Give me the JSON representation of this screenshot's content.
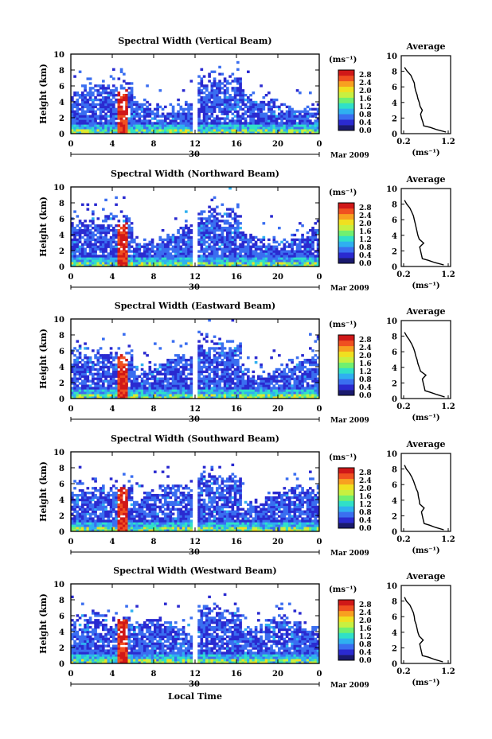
{
  "figure": {
    "x_axis_label": "Local Time",
    "date_left": "30",
    "date_right": "Mar 2009",
    "colorbar_unit": "(ms⁻¹)",
    "profile_title": "Average",
    "profile_xlabel": "(ms⁻¹)"
  },
  "colorbar": {
    "tick_labels": [
      "0.0",
      "0.4",
      "0.8",
      "1.2",
      "1.6",
      "2.0",
      "2.4",
      "2.8"
    ],
    "colors": [
      "#1a1a6e",
      "#2a2ad0",
      "#3a6ef0",
      "#2fb0f0",
      "#30e0c8",
      "#70f070",
      "#c8f040",
      "#f0e020",
      "#f8a020",
      "#f05020",
      "#d01818"
    ]
  },
  "chart_data": [
    {
      "type": "heatmap",
      "title": "Spectral Width (Vertical Beam)",
      "xlabel": "Local Time",
      "ylabel": "Height (km)",
      "xlim": [
        0,
        24
      ],
      "ylim": [
        0,
        10
      ],
      "x_ticks": [
        "0",
        "4",
        "8",
        "12",
        "16",
        "20",
        "0"
      ],
      "y_ticks": [
        "0",
        "2",
        "4",
        "6",
        "8",
        "10"
      ],
      "colorbar_range": [
        0,
        2.8
      ],
      "profile": {
        "title": "Average",
        "xlabel": "(ms⁻¹)",
        "xlim": [
          0.2,
          1.2
        ],
        "x_ticks": [
          "0.2",
          "1.2"
        ],
        "y_ticks": [
          "0",
          "2",
          "4",
          "6",
          "8",
          "10"
        ],
        "heights": [
          0.2,
          0.5,
          0.8,
          1.0,
          1.5,
          2.0,
          2.5,
          3.0,
          3.5,
          4.0,
          4.5,
          5.0,
          5.5,
          6.0,
          6.5,
          7.0,
          7.5,
          8.0,
          8.5
        ],
        "values": [
          1.15,
          0.95,
          0.8,
          0.65,
          0.63,
          0.6,
          0.58,
          0.62,
          0.57,
          0.55,
          0.52,
          0.5,
          0.47,
          0.45,
          0.44,
          0.4,
          0.36,
          0.28,
          0.22
        ]
      }
    },
    {
      "type": "heatmap",
      "title": "Spectral Width (Northward Beam)",
      "xlabel": "Local Time",
      "ylabel": "Height (km)",
      "xlim": [
        0,
        24
      ],
      "ylim": [
        0,
        10
      ],
      "x_ticks": [
        "0",
        "4",
        "8",
        "12",
        "16",
        "20",
        "0"
      ],
      "y_ticks": [
        "0",
        "2",
        "4",
        "6",
        "8",
        "10"
      ],
      "colorbar_range": [
        0,
        2.8
      ],
      "profile": {
        "title": "Average",
        "xlabel": "(ms⁻¹)",
        "xlim": [
          0.2,
          1.2
        ],
        "x_ticks": [
          "0.2",
          "1.2"
        ],
        "y_ticks": [
          "0",
          "2",
          "4",
          "6",
          "8",
          "10"
        ],
        "heights": [
          0.2,
          0.5,
          0.8,
          1.0,
          1.5,
          2.0,
          2.5,
          3.0,
          3.5,
          4.0,
          4.5,
          5.0,
          5.5,
          6.0,
          6.5,
          7.0,
          7.5,
          8.0,
          8.5
        ],
        "values": [
          1.1,
          0.9,
          0.75,
          0.62,
          0.6,
          0.58,
          0.56,
          0.65,
          0.55,
          0.52,
          0.5,
          0.48,
          0.46,
          0.44,
          0.42,
          0.38,
          0.34,
          0.27,
          0.22
        ]
      }
    },
    {
      "type": "heatmap",
      "title": "Spectral Width (Eastward Beam)",
      "xlabel": "Local Time",
      "ylabel": "Height (km)",
      "xlim": [
        0,
        24
      ],
      "ylim": [
        0,
        10
      ],
      "x_ticks": [
        "0",
        "4",
        "8",
        "12",
        "16",
        "20",
        "0"
      ],
      "y_ticks": [
        "0",
        "2",
        "4",
        "6",
        "8",
        "10"
      ],
      "colorbar_range": [
        0,
        2.8
      ],
      "profile": {
        "title": "Average",
        "xlabel": "(ms⁻¹)",
        "xlim": [
          0.2,
          1.2
        ],
        "x_ticks": [
          "0.2",
          "1.2"
        ],
        "y_ticks": [
          "0",
          "2",
          "4",
          "6",
          "8",
          "10"
        ],
        "heights": [
          0.2,
          0.5,
          0.8,
          1.0,
          1.5,
          2.0,
          2.5,
          3.0,
          3.5,
          4.0,
          4.5,
          5.0,
          5.5,
          6.0,
          6.5,
          7.0,
          7.5,
          8.0,
          8.5
        ],
        "values": [
          1.12,
          0.95,
          0.8,
          0.68,
          0.66,
          0.64,
          0.62,
          0.7,
          0.58,
          0.55,
          0.52,
          0.5,
          0.47,
          0.45,
          0.42,
          0.38,
          0.33,
          0.27,
          0.22
        ]
      }
    },
    {
      "type": "heatmap",
      "title": "Spectral Width (Southward Beam)",
      "xlabel": "Local Time",
      "ylabel": "Height (km)",
      "xlim": [
        0,
        24
      ],
      "ylim": [
        0,
        10
      ],
      "x_ticks": [
        "0",
        "4",
        "8",
        "12",
        "16",
        "20",
        "0"
      ],
      "y_ticks": [
        "0",
        "2",
        "4",
        "6",
        "8",
        "10"
      ],
      "colorbar_range": [
        0,
        2.8
      ],
      "profile": {
        "title": "Average",
        "xlabel": "(ms⁻¹)",
        "xlim": [
          0.2,
          1.2
        ],
        "x_ticks": [
          "0.2",
          "1.2"
        ],
        "y_ticks": [
          "0",
          "2",
          "4",
          "6",
          "8",
          "10"
        ],
        "heights": [
          0.2,
          0.5,
          0.8,
          1.0,
          1.5,
          2.0,
          2.5,
          3.0,
          3.5,
          4.0,
          4.5,
          5.0,
          5.5,
          6.0,
          6.5,
          7.0,
          7.5,
          8.0,
          8.5
        ],
        "values": [
          1.1,
          0.92,
          0.78,
          0.66,
          0.64,
          0.62,
          0.6,
          0.66,
          0.56,
          0.55,
          0.53,
          0.52,
          0.48,
          0.45,
          0.42,
          0.38,
          0.33,
          0.26,
          0.22
        ]
      }
    },
    {
      "type": "heatmap",
      "title": "Spectral Width (Westward Beam)",
      "xlabel": "Local Time",
      "ylabel": "Height (km)",
      "xlim": [
        0,
        24
      ],
      "ylim": [
        0,
        10
      ],
      "x_ticks": [
        "0",
        "4",
        "8",
        "12",
        "16",
        "20",
        "0"
      ],
      "y_ticks": [
        "0",
        "2",
        "4",
        "6",
        "8",
        "10"
      ],
      "colorbar_range": [
        0,
        2.8
      ],
      "profile": {
        "title": "Average",
        "xlabel": "(ms⁻¹)",
        "xlim": [
          0.2,
          1.2
        ],
        "x_ticks": [
          "0.2",
          "1.2"
        ],
        "y_ticks": [
          "0",
          "2",
          "4",
          "6",
          "8",
          "10"
        ],
        "heights": [
          0.2,
          0.5,
          0.8,
          1.0,
          1.5,
          2.0,
          2.5,
          3.0,
          3.5,
          4.0,
          4.5,
          5.0,
          5.5,
          6.0,
          6.5,
          7.0,
          7.5,
          8.0,
          8.5
        ],
        "values": [
          1.08,
          0.9,
          0.76,
          0.62,
          0.6,
          0.58,
          0.56,
          0.64,
          0.55,
          0.52,
          0.5,
          0.48,
          0.45,
          0.44,
          0.42,
          0.38,
          0.34,
          0.26,
          0.22
        ]
      }
    }
  ]
}
